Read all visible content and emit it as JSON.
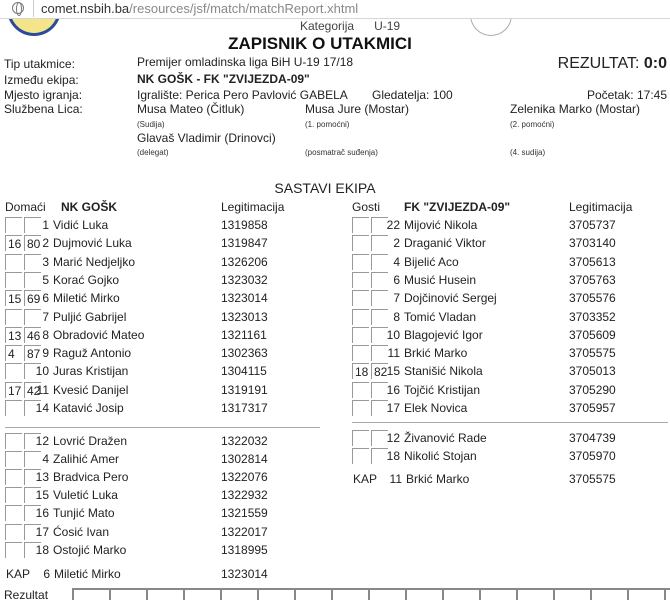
{
  "browser": {
    "url_host": "comet.nsbih.ba",
    "url_path": "/resources/jsf/match/matchReport.xhtml"
  },
  "header": {
    "category_label": "Kategorija",
    "category_value": "U-19",
    "title": "ZAPISNIK O UTAKMICI",
    "result_label": "REZULTAT:",
    "result_value": "0:0"
  },
  "info": {
    "type_label": "Tip utakmice:",
    "type_value": "Premijer omladinska liga BiH U-19 17/18",
    "teams_label": "Između ekipa:",
    "teams_value": "NK GOŠK - FK \"ZVIJEZDA-09\"",
    "venue_label": "Mjesto igranja:",
    "venue_value": "Igralište: Perica Pero Pavlović GABELA",
    "spectators": "Gledatelja: 100",
    "start": "Početak: 17:45",
    "officials_label": "Službena Lica:",
    "officials": [
      {
        "name": "Musa Mateo (Čitluk)",
        "role": "(Sudija)"
      },
      {
        "name": "Musa Jure (Mostar)",
        "role": "(1. pomoćni)"
      },
      {
        "name": "Zelenika Marko (Mostar)",
        "role": "(2. pomoćni)"
      },
      {
        "name": "Glavaš Vladimir (Drinovci)",
        "role": "(delegat)"
      },
      {
        "name": "",
        "role": "(posmatrač suđenja)"
      },
      {
        "name": "",
        "role": "(4. sudija)"
      }
    ]
  },
  "lineups": {
    "title": "SASTAVI EKIPA",
    "home": {
      "side_label": "Domaći",
      "team": "NK GOŠK",
      "id_label": "Legitimacija",
      "starters": [
        {
          "a": "",
          "b": "",
          "num": "1",
          "name": "Vidić Luka",
          "id": "1319858"
        },
        {
          "a": "16",
          "b": "80",
          "num": "2",
          "name": "Dujmović Luka",
          "id": "1319847"
        },
        {
          "a": "",
          "b": "",
          "num": "3",
          "name": "Marić Nedjeljko",
          "id": "1326206"
        },
        {
          "a": "",
          "b": "",
          "num": "5",
          "name": "Korać Gojko",
          "id": "1323032"
        },
        {
          "a": "15",
          "b": "69",
          "num": "6",
          "name": "Miletić Mirko",
          "id": "1323014"
        },
        {
          "a": "",
          "b": "",
          "num": "7",
          "name": "Puljić Gabrijel",
          "id": "1323013"
        },
        {
          "a": "13",
          "b": "46",
          "num": "8",
          "name": "Obradović Mateo",
          "id": "1321161"
        },
        {
          "a": "4",
          "b": "87",
          "num": "9",
          "name": "Raguž Antonio",
          "id": "1302363"
        },
        {
          "a": "",
          "b": "",
          "num": "10",
          "name": "Juras Kristijan",
          "id": "1304115"
        },
        {
          "a": "17",
          "b": "42",
          "num": "11",
          "name": "Kvesić Danijel",
          "id": "1319191"
        },
        {
          "a": "",
          "b": "",
          "num": "14",
          "name": "Katavić Josip",
          "id": "1317317"
        }
      ],
      "subs": [
        {
          "a": "",
          "b": "",
          "num": "12",
          "name": "Lovrić Dražen",
          "id": "1322032"
        },
        {
          "a": "",
          "b": "",
          "num": "4",
          "name": "Zalihić Amer",
          "id": "1302814"
        },
        {
          "a": "",
          "b": "",
          "num": "13",
          "name": "Bradvica Pero",
          "id": "1322076"
        },
        {
          "a": "",
          "b": "",
          "num": "15",
          "name": "Vuletić Luka",
          "id": "1322932"
        },
        {
          "a": "",
          "b": "",
          "num": "16",
          "name": "Tunjić Mato",
          "id": "1321559"
        },
        {
          "a": "",
          "b": "",
          "num": "17",
          "name": "Ćosić Ivan",
          "id": "1322017"
        },
        {
          "a": "",
          "b": "",
          "num": "18",
          "name": "Ostojić Marko",
          "id": "1318995"
        }
      ],
      "captain": {
        "label": "KAP",
        "num": "6",
        "name": "Miletić Mirko",
        "id": "1323014"
      }
    },
    "away": {
      "side_label": "Gosti",
      "team": "FK \"ZVIJEZDA-09\"",
      "id_label": "Legitimacija",
      "starters": [
        {
          "a": "",
          "b": "",
          "num": "22",
          "name": "Mijović Nikola",
          "id": "3705737"
        },
        {
          "a": "",
          "b": "",
          "num": "2",
          "name": "Draganić Viktor",
          "id": "3703140"
        },
        {
          "a": "",
          "b": "",
          "num": "4",
          "name": "Bijelić Aco",
          "id": "3705613"
        },
        {
          "a": "",
          "b": "",
          "num": "6",
          "name": "Musić Husein",
          "id": "3705763"
        },
        {
          "a": "",
          "b": "",
          "num": "7",
          "name": "Dojčinović Sergej",
          "id": "3705576"
        },
        {
          "a": "",
          "b": "",
          "num": "8",
          "name": "Tomić Vladan",
          "id": "3703352"
        },
        {
          "a": "",
          "b": "",
          "num": "10",
          "name": "Blagojević Igor",
          "id": "3705609"
        },
        {
          "a": "",
          "b": "",
          "num": "11",
          "name": "Brkić Marko",
          "id": "3705575"
        },
        {
          "a": "18",
          "b": "82",
          "num": "15",
          "name": "Stanišić Nikola",
          "id": "3705013"
        },
        {
          "a": "",
          "b": "",
          "num": "16",
          "name": "Tojčić Kristijan",
          "id": "3705290"
        },
        {
          "a": "",
          "b": "",
          "num": "17",
          "name": "Elek Novica",
          "id": "3705957"
        }
      ],
      "subs": [
        {
          "a": "",
          "b": "",
          "num": "12",
          "name": "Živanović Rade",
          "id": "3704739"
        },
        {
          "a": "",
          "b": "",
          "num": "18",
          "name": "Nikolić Stojan",
          "id": "3705970"
        }
      ],
      "captain": {
        "label": "KAP",
        "num": "11",
        "name": "Brkić Marko",
        "id": "3705575"
      }
    }
  },
  "footer": {
    "result_label": "Rezultat"
  }
}
